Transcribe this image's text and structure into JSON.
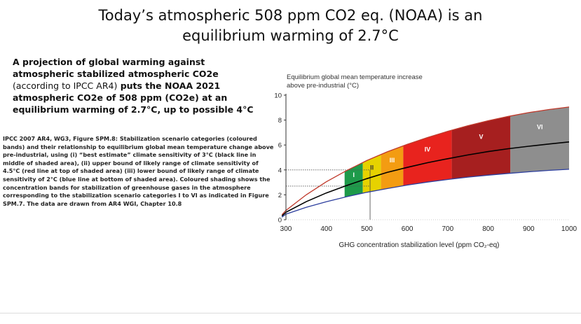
{
  "header": {
    "title_line1": "Today’s atmospheric 508 ppm CO2 eq. (NOAA) is an",
    "title_line2": "equilibrium warming of 2.7°C"
  },
  "intro": {
    "part1": "A projection of global warming against atmospheric stabilized atmospheric CO2e ",
    "part2": "(according to IPCC AR4)",
    "part3": " puts the NOAA 2021 atmospheric CO2e of 508 ppm (CO2e) at an equilibrium warming of 2.7°C, up to possible 4°C"
  },
  "caption": "IPCC 2007 AR4, WG3, Figure SPM.8: Stabilization scenario categories (coloured bands) and their relationship to equilibrium global mean temperature change above pre-industrial, using (i) “best estimate” climate sensitivity of 3°C (black line in middle of shaded area), (ii) upper bound of likely range of climate sensitivity of 4.5°C (red line at top of shaded area) (iii) lower bound of likely range of climate sensitivity of 2°C (blue line at bottom of shaded area). Coloured shading shows the concentration bands for stabilization of greenhouse gases in the atmosphere corresponding to the stabilization scenario categories I to VI as indicated in Figure SPM.7. The data are drawn from AR4 WGI, Chapter 10.8",
  "chart_data": {
    "type": "area",
    "ylabel_line1": "Equilibrium global mean temperature increase",
    "ylabel_line2": "above pre-industrial (°C)",
    "xlabel": "GHG concentration stabilization level (ppm CO₂-eq)",
    "xlim": [
      300,
      1000
    ],
    "ylim": [
      0,
      10
    ],
    "x_ticks": [
      300,
      400,
      500,
      600,
      700,
      800,
      900,
      1000
    ],
    "y_ticks": [
      0,
      2,
      4,
      6,
      8,
      10
    ],
    "x": [
      290,
      300,
      350,
      400,
      450,
      500,
      550,
      600,
      650,
      700,
      750,
      800,
      850,
      900,
      950,
      1000
    ],
    "series": [
      {
        "line": "upper",
        "color": "#c0392b",
        "values": [
          0.4,
          0.75,
          2.0,
          3.05,
          3.95,
          4.75,
          5.45,
          6.05,
          6.6,
          7.1,
          7.55,
          7.95,
          8.3,
          8.6,
          8.85,
          9.05
        ]
      },
      {
        "line": "best",
        "color": "#000000",
        "values": [
          0.3,
          0.6,
          1.45,
          2.15,
          2.75,
          3.3,
          3.8,
          4.2,
          4.58,
          4.9,
          5.2,
          5.47,
          5.7,
          5.9,
          6.08,
          6.25
        ]
      },
      {
        "line": "lower",
        "color": "#2c3e9e",
        "values": [
          0.2,
          0.45,
          1.0,
          1.45,
          1.85,
          2.2,
          2.5,
          2.78,
          3.02,
          3.23,
          3.42,
          3.58,
          3.72,
          3.85,
          3.96,
          4.05
        ]
      }
    ],
    "bands": [
      {
        "label": "I",
        "from": 445,
        "to": 490,
        "color": "#1e9a4a"
      },
      {
        "label": "II",
        "from": 490,
        "to": 535,
        "color": "#e6d200"
      },
      {
        "label": "III",
        "from": 535,
        "to": 590,
        "color": "#f39c12"
      },
      {
        "label": "IV",
        "from": 590,
        "to": 710,
        "color": "#e8231e"
      },
      {
        "label": "V",
        "from": 710,
        "to": 855,
        "color": "#a61f1f"
      },
      {
        "label": "VI",
        "from": 855,
        "to": 1000,
        "color": "#8e8e8e"
      }
    ],
    "reference_lines": [
      {
        "axis": "y",
        "value": 4,
        "style": "dotted"
      },
      {
        "axis": "y",
        "value": 2.7,
        "style": "dotted"
      },
      {
        "axis": "x",
        "value": 508,
        "style": "solid"
      }
    ],
    "grid": false
  }
}
